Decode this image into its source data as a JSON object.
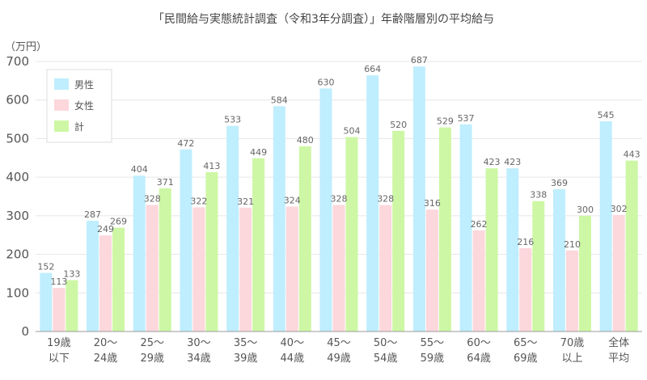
{
  "chart_data": {
    "type": "bar",
    "title": "「民間給与実態統計調査（令和3年分調査）」年齢階層別の平均給与",
    "ylabel": "（万円）",
    "ylim": [
      0,
      700
    ],
    "yticks": [
      "0",
      "100",
      "200",
      "300",
      "400",
      "500",
      "600",
      "700"
    ],
    "grid": true,
    "legend_position": "top-left",
    "categories": [
      [
        "19歳",
        "以下"
      ],
      [
        "20～",
        "24歳"
      ],
      [
        "25～",
        "29歳"
      ],
      [
        "30～",
        "34歳"
      ],
      [
        "35～",
        "39歳"
      ],
      [
        "40～",
        "44歳"
      ],
      [
        "45～",
        "49歳"
      ],
      [
        "50～",
        "54歳"
      ],
      [
        "55～",
        "59歳"
      ],
      [
        "60～",
        "64歳"
      ],
      [
        "65～",
        "69歳"
      ],
      [
        "70歳",
        "以上"
      ],
      [
        "全体",
        "平均"
      ]
    ],
    "series": [
      {
        "name": "男性",
        "color": "#bfeefe",
        "values": [
          152,
          287,
          404,
          472,
          533,
          584,
          630,
          664,
          687,
          537,
          423,
          369,
          545
        ]
      },
      {
        "name": "女性",
        "color": "#fcd7dc",
        "values": [
          113,
          249,
          328,
          322,
          321,
          324,
          328,
          328,
          316,
          262,
          216,
          210,
          302
        ]
      },
      {
        "name": "計",
        "color": "#cdf7a4",
        "values": [
          133,
          269,
          371,
          413,
          449,
          480,
          504,
          520,
          529,
          423,
          338,
          300,
          443
        ]
      }
    ]
  }
}
